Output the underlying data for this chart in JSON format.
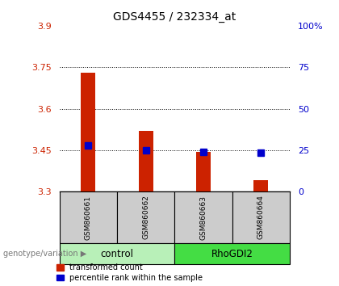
{
  "title": "GDS4455 / 232334_at",
  "samples": [
    "GSM860661",
    "GSM860662",
    "GSM860663",
    "GSM860664"
  ],
  "groups": [
    "control",
    "control",
    "RhoGDI2",
    "RhoGDI2"
  ],
  "red_values": [
    3.73,
    3.52,
    3.445,
    3.34
  ],
  "blue_values": [
    3.468,
    3.451,
    3.443,
    3.441
  ],
  "ylim_left": [
    3.3,
    3.9
  ],
  "yticks_left": [
    3.3,
    3.45,
    3.6,
    3.75,
    3.9
  ],
  "ytick_labels_left": [
    "3.3",
    "3.45",
    "3.6",
    "3.75",
    "3.9"
  ],
  "yticks_right": [
    0,
    25,
    50,
    75,
    100
  ],
  "ytick_labels_right": [
    "0",
    "25",
    "50",
    "75",
    "100%"
  ],
  "bar_bottom": 3.3,
  "bar_width": 0.25,
  "red_color": "#cc2200",
  "blue_color": "#0000cc",
  "legend_red": "transformed count",
  "legend_blue": "percentile rank within the sample",
  "genotype_label": "genotype/variation",
  "left_axis_color": "#cc2200",
  "right_axis_color": "#0000cc",
  "sample_box_color": "#cccccc",
  "control_color": "#b8f0b8",
  "rho_color": "#44dd44",
  "blue_marker_size": 6,
  "grid_dotted_ticks": [
    3.45,
    3.6,
    3.75
  ]
}
